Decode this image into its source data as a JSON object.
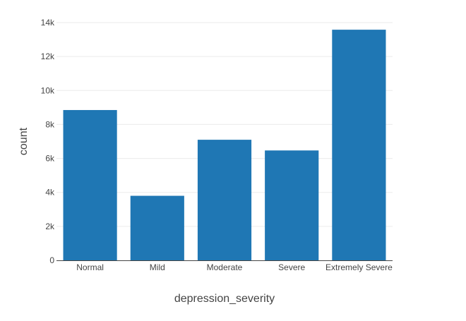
{
  "chart_data": {
    "type": "bar",
    "categories": [
      "Normal",
      "Mild",
      "Moderate",
      "Severe",
      "Extremely Severe"
    ],
    "values": [
      8850,
      3800,
      7100,
      6470,
      13580
    ],
    "xlabel": "depression_severity",
    "ylabel": "count",
    "ylim": [
      0,
      14000
    ],
    "yticks": [
      0,
      2000,
      4000,
      6000,
      8000,
      10000,
      12000,
      14000
    ],
    "ytick_labels": [
      "0",
      "2k",
      "4k",
      "6k",
      "8k",
      "10k",
      "12k",
      "14k"
    ],
    "grid": true,
    "bar_color": "#1f77b4"
  }
}
